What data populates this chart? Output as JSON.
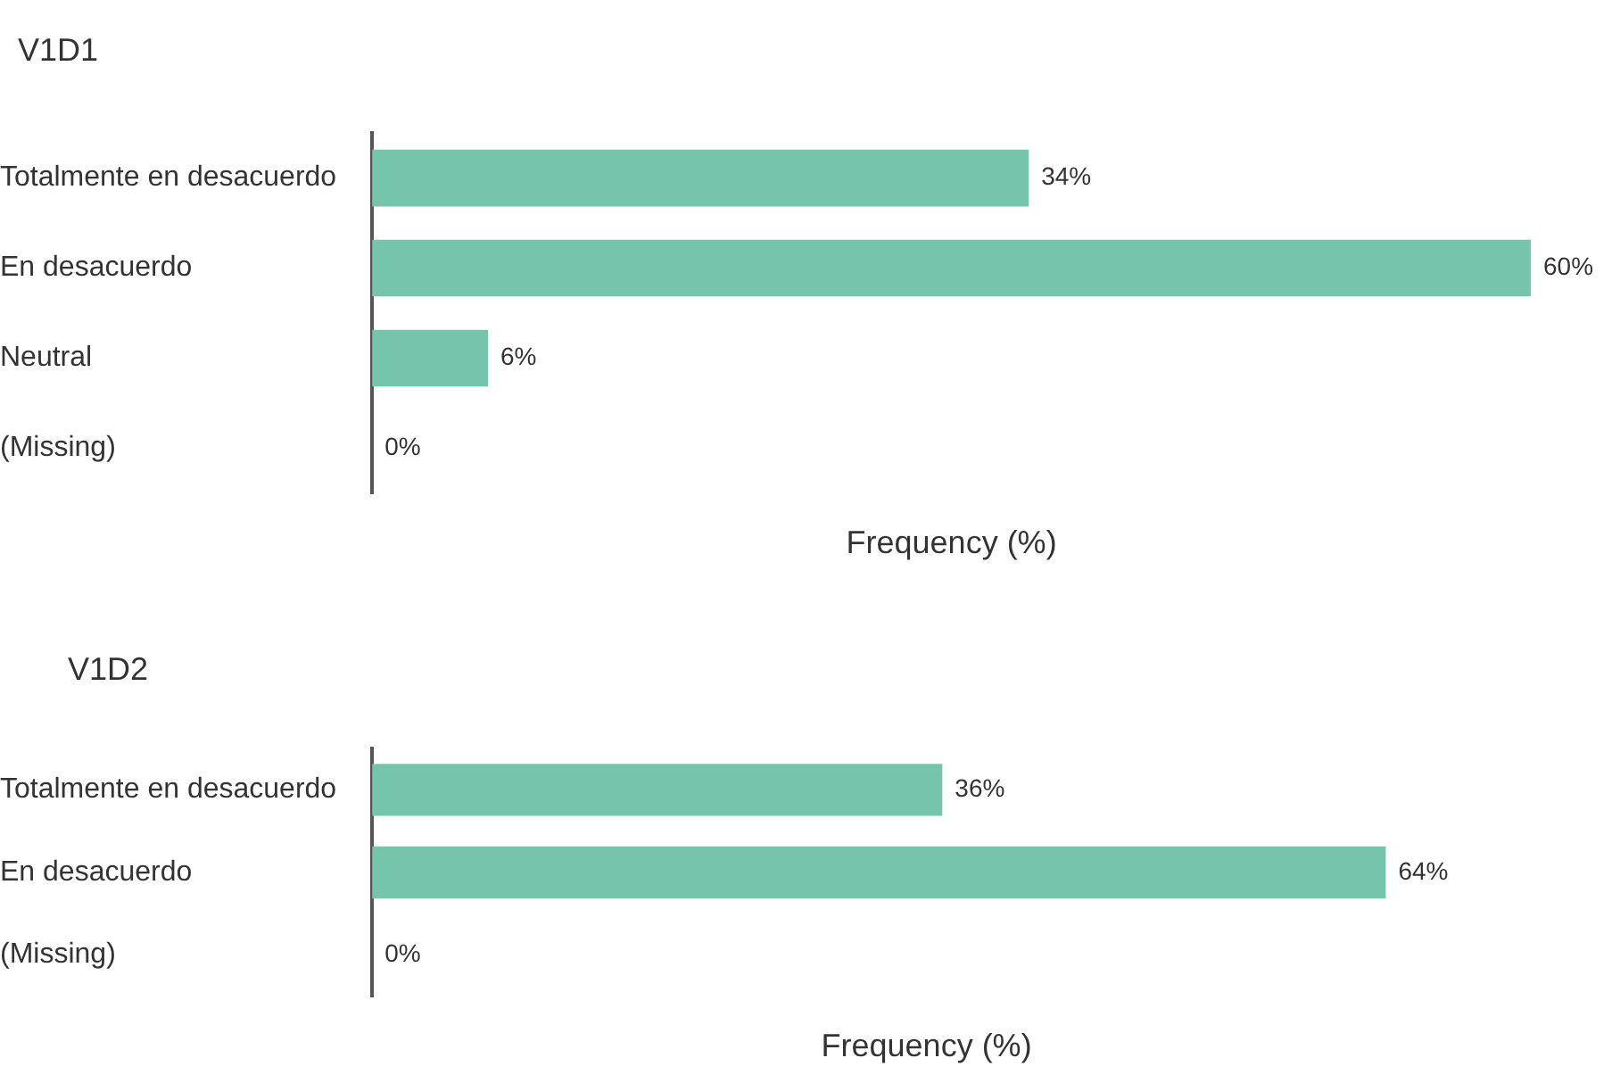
{
  "chart_data": [
    {
      "type": "bar",
      "orientation": "horizontal",
      "title": "V1D1",
      "xlabel": "Frequency (%)",
      "categories": [
        "Totalmente en desacuerdo",
        "En desacuerdo",
        "Neutral",
        "(Missing)"
      ],
      "values": [
        34,
        60,
        6,
        0
      ],
      "value_labels": [
        "34%",
        "60%",
        "6%",
        "0%"
      ],
      "color": "#77c4ad",
      "grid": false,
      "legend": false,
      "tick_labels": "y"
    },
    {
      "type": "bar",
      "orientation": "horizontal",
      "title": "V1D2",
      "xlabel": "Frequency (%)",
      "categories": [
        "Totalmente en desacuerdo",
        "En desacuerdo",
        "(Missing)"
      ],
      "values": [
        36,
        64,
        0
      ],
      "value_labels": [
        "36%",
        "64%",
        "0%"
      ],
      "color": "#77c4ad",
      "grid": false,
      "legend": false,
      "tick_labels": "y"
    }
  ]
}
